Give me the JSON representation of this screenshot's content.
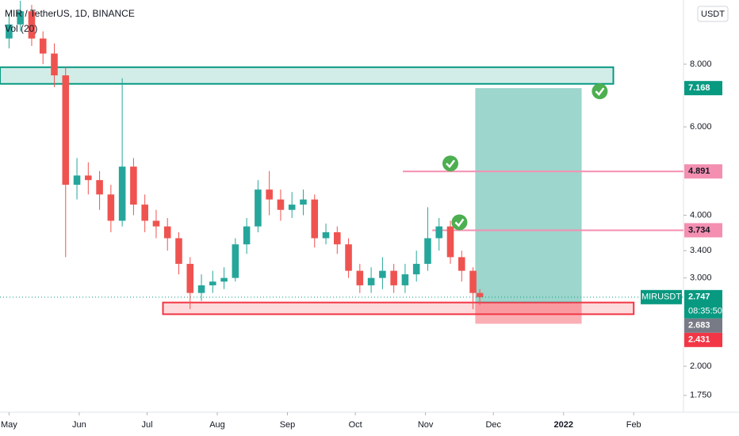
{
  "chart_data": {
    "type": "candlestick",
    "title": "MIR / TetherUS, 1D, BINANCE",
    "indicator": "Vol (20)",
    "symbol": "MIRUSDT",
    "currency": "USDT",
    "countdown": "08:35:50",
    "up_color": "#26a69a",
    "down_color": "#ef5350",
    "log_scale": true,
    "grid": false,
    "x": [
      "2021-05-01",
      "2021-05-06",
      "2021-05-11",
      "2021-05-16",
      "2021-05-21",
      "2021-05-26",
      "2021-05-31",
      "2021-06-05",
      "2021-06-10",
      "2021-06-15",
      "2021-06-20",
      "2021-06-25",
      "2021-06-30",
      "2021-07-05",
      "2021-07-10",
      "2021-07-15",
      "2021-07-20",
      "2021-07-25",
      "2021-07-30",
      "2021-08-04",
      "2021-08-09",
      "2021-08-14",
      "2021-08-19",
      "2021-08-24",
      "2021-08-29",
      "2021-09-03",
      "2021-09-08",
      "2021-09-13",
      "2021-09-18",
      "2021-09-23",
      "2021-09-28",
      "2021-10-03",
      "2021-10-08",
      "2021-10-13",
      "2021-10-18",
      "2021-10-23",
      "2021-10-28",
      "2021-11-02",
      "2021-11-07",
      "2021-11-12",
      "2021-11-17",
      "2021-11-22",
      "2021-11-25"
    ],
    "open": [
      9.0,
      9.6,
      10.2,
      9.0,
      8.4,
      7.6,
      4.6,
      4.8,
      4.7,
      4.4,
      3.9,
      5.0,
      4.2,
      3.9,
      3.8,
      3.6,
      3.2,
      2.8,
      2.9,
      2.95,
      3.0,
      3.5,
      3.8,
      4.5,
      4.3,
      4.1,
      4.2,
      4.3,
      3.6,
      3.7,
      3.5,
      3.1,
      2.9,
      3.0,
      3.1,
      2.9,
      3.05,
      3.2,
      3.6,
      3.8,
      3.3,
      3.1,
      2.8
    ],
    "high": [
      10.1,
      10.7,
      10.5,
      9.3,
      8.8,
      7.9,
      5.2,
      5.1,
      4.9,
      4.6,
      7.5,
      5.2,
      4.4,
      4.1,
      3.95,
      3.7,
      3.3,
      3.05,
      3.1,
      3.15,
      3.6,
      3.95,
      4.7,
      4.9,
      4.5,
      4.45,
      4.5,
      4.4,
      3.85,
      3.8,
      3.6,
      3.2,
      3.15,
      3.3,
      3.2,
      3.2,
      3.4,
      4.15,
      3.95,
      3.9,
      3.4,
      3.15,
      2.85
    ],
    "low": [
      8.6,
      9.3,
      8.7,
      8.0,
      7.2,
      3.3,
      4.3,
      4.4,
      4.1,
      3.7,
      3.8,
      4.0,
      3.7,
      3.6,
      3.4,
      3.05,
      2.6,
      2.7,
      2.8,
      2.85,
      2.95,
      3.35,
      3.7,
      4.0,
      3.9,
      3.95,
      4.0,
      3.45,
      3.5,
      3.35,
      3.0,
      2.8,
      2.8,
      2.85,
      2.8,
      2.8,
      2.95,
      3.1,
      3.4,
      3.2,
      2.95,
      2.6,
      2.65
    ],
    "close": [
      9.6,
      10.2,
      9.0,
      8.4,
      7.6,
      4.6,
      4.8,
      4.7,
      4.4,
      3.9,
      5.0,
      4.2,
      3.9,
      3.8,
      3.6,
      3.2,
      2.8,
      2.9,
      2.95,
      3.0,
      3.5,
      3.8,
      4.5,
      4.3,
      4.1,
      4.2,
      4.3,
      3.6,
      3.7,
      3.5,
      3.1,
      2.9,
      3.0,
      3.1,
      2.9,
      3.05,
      3.2,
      3.6,
      3.8,
      3.3,
      3.1,
      2.8,
      2.747
    ],
    "xlim": [
      "2021-04-27",
      "2022-02-23"
    ],
    "xticks": [
      {
        "value": "2021-05-01",
        "label": "May"
      },
      {
        "value": "2021-06-01",
        "label": "Jun"
      },
      {
        "value": "2021-07-01",
        "label": "Jul"
      },
      {
        "value": "2021-08-01",
        "label": "Aug"
      },
      {
        "value": "2021-09-01",
        "label": "Sep"
      },
      {
        "value": "2021-10-01",
        "label": "Oct"
      },
      {
        "value": "2021-11-01",
        "label": "Nov"
      },
      {
        "value": "2021-12-01",
        "label": "Dec"
      },
      {
        "value": "2022-01-01",
        "label": "2022"
      },
      {
        "value": "2022-02-01",
        "label": "Feb"
      }
    ],
    "ylim": [
      1.62,
      10.74
    ],
    "yticks": [
      {
        "value": 1.75,
        "label": "1.750"
      },
      {
        "value": 2,
        "label": "2.000"
      },
      {
        "value": 3,
        "label": "3.000"
      },
      {
        "value": 3.4,
        "label": "3.400"
      },
      {
        "value": 4,
        "label": "4.000"
      },
      {
        "value": 6,
        "label": "6.000"
      },
      {
        "value": 8,
        "label": "8.000"
      }
    ],
    "zones": [
      {
        "from": "2021-04-27",
        "to": "2022-01-23",
        "low": 7.31,
        "high": 7.89,
        "color": "#089981"
      },
      {
        "from": "2021-07-08",
        "to": "2022-02-01",
        "low": 2.54,
        "high": 2.68,
        "color": "#f23645"
      }
    ],
    "position": {
      "from": "2021-11-23",
      "to": "2022-01-09",
      "entry": 2.683,
      "target": 7.168,
      "stop": 2.431,
      "check": "2022-01-17",
      "target_color": "#089981",
      "entry_color": "#787b86",
      "stop_color": "#f23645"
    },
    "lines": [
      {
        "price": 4.891,
        "from": "2021-10-22",
        "check": "2021-11-12",
        "color": "#f48fb1"
      },
      {
        "price": 3.734,
        "from": "2021-11-04",
        "check": "2021-11-16",
        "color": "#f48fb1"
      }
    ]
  }
}
